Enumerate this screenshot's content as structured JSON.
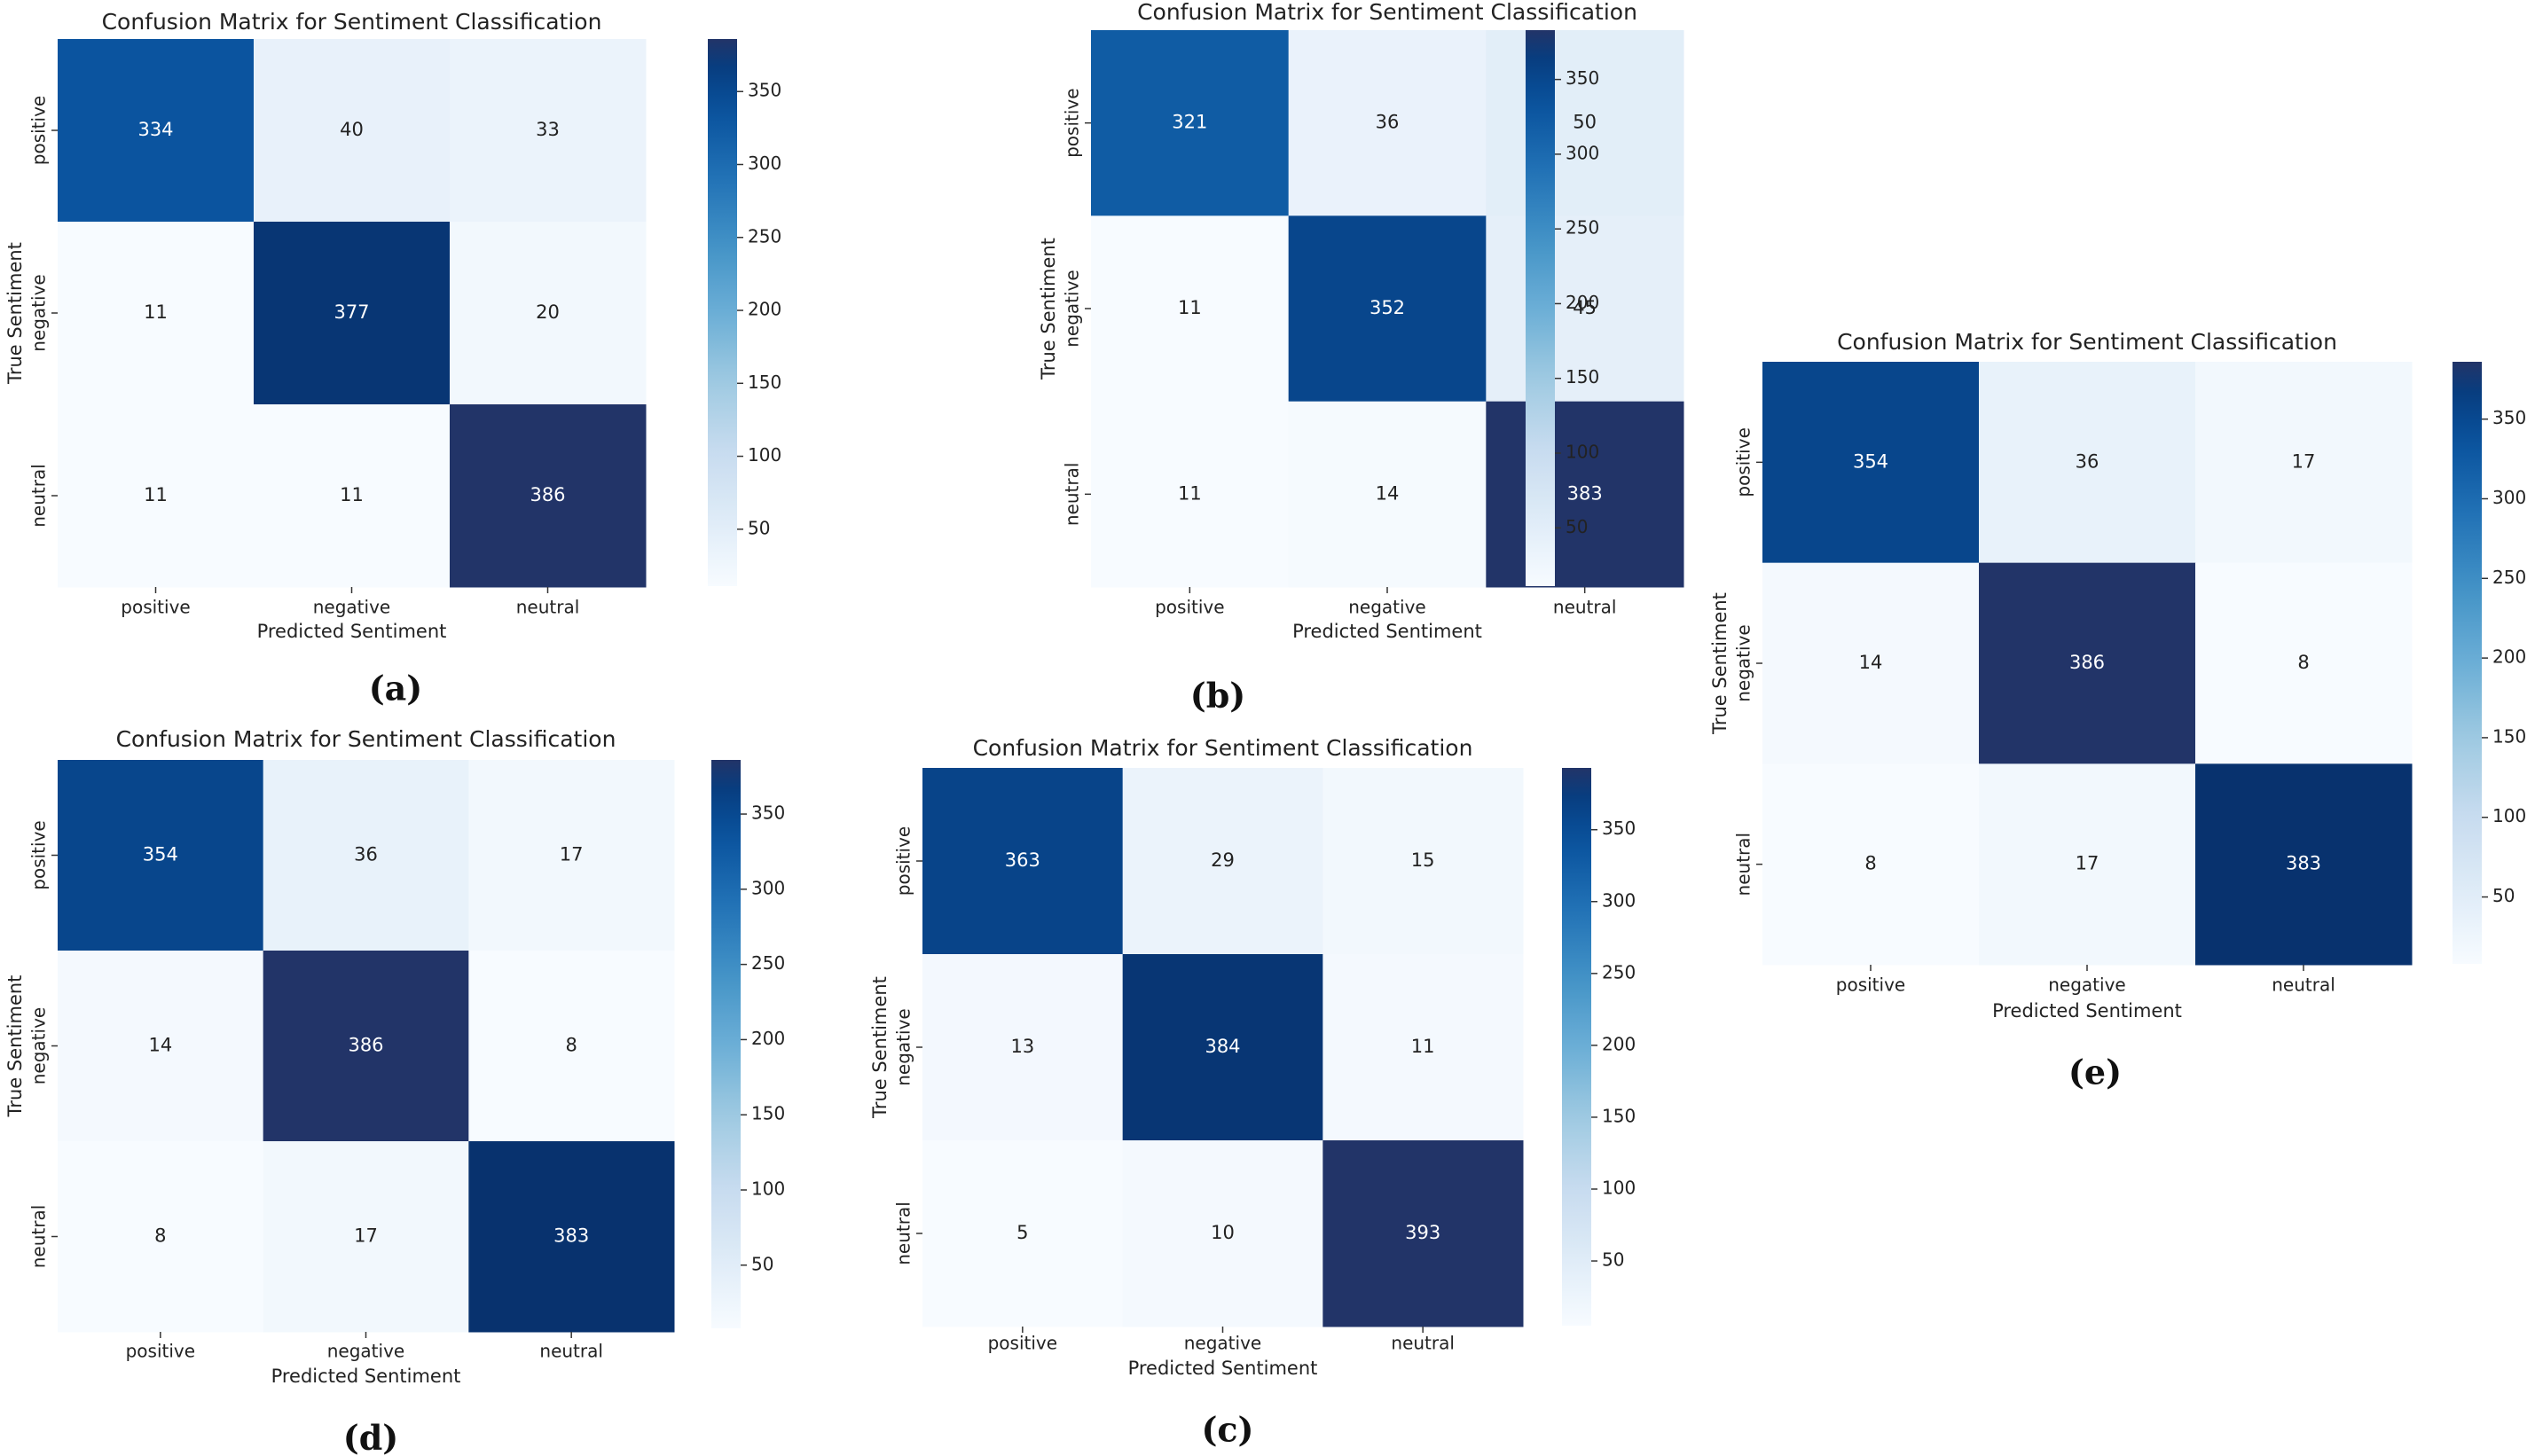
{
  "colors": {
    "cmap_stops": [
      "#f7fbff",
      "#deebf7",
      "#c6dbef",
      "#9ecae1",
      "#6baed6",
      "#4292c6",
      "#2171b5",
      "#08519c",
      "#08306b"
    ],
    "cmap_max_color": "#223468",
    "text_dark": "#222222",
    "text_light": "#ffffff"
  },
  "chart_data": [
    {
      "type": "heatmap",
      "panel": "a",
      "caption": "(a)",
      "title": "Confusion Matrix for Sentiment Classification",
      "xlabel": "Predicted Sentiment",
      "ylabel": "True Sentiment",
      "x_categories": [
        "positive",
        "negative",
        "neutral"
      ],
      "y_categories": [
        "positive",
        "negative",
        "neutral"
      ],
      "values": [
        [
          334,
          40,
          33
        ],
        [
          11,
          377,
          20
        ],
        [
          11,
          11,
          386
        ]
      ],
      "colorbar": {
        "min": 11,
        "max": 386,
        "ticks": [
          50,
          100,
          150,
          200,
          250,
          300,
          350
        ]
      }
    },
    {
      "type": "heatmap",
      "panel": "b",
      "caption": "(b)",
      "title": "Confusion Matrix for Sentiment Classification",
      "xlabel": "Predicted Sentiment",
      "ylabel": "True Sentiment",
      "x_categories": [
        "positive",
        "negative",
        "neutral"
      ],
      "y_categories": [
        "positive",
        "negative",
        "neutral"
      ],
      "values": [
        [
          321,
          36,
          50
        ],
        [
          11,
          352,
          45
        ],
        [
          11,
          14,
          383
        ]
      ],
      "colorbar": {
        "min": 11,
        "max": 383,
        "ticks": [
          50,
          100,
          150,
          200,
          250,
          300,
          350
        ]
      }
    },
    {
      "type": "heatmap",
      "panel": "e",
      "caption": "(e)",
      "title": "Confusion Matrix for Sentiment Classification",
      "xlabel": "Predicted Sentiment",
      "ylabel": "True Sentiment",
      "x_categories": [
        "positive",
        "negative",
        "neutral"
      ],
      "y_categories": [
        "positive",
        "negative",
        "neutral"
      ],
      "values": [
        [
          354,
          36,
          17
        ],
        [
          14,
          386,
          8
        ],
        [
          8,
          17,
          383
        ]
      ],
      "colorbar": {
        "min": 8,
        "max": 386,
        "ticks": [
          50,
          100,
          150,
          200,
          250,
          300,
          350
        ]
      }
    },
    {
      "type": "heatmap",
      "panel": "d",
      "caption": "(d)",
      "title": "Confusion Matrix for Sentiment Classification",
      "xlabel": "Predicted Sentiment",
      "ylabel": "True Sentiment",
      "x_categories": [
        "positive",
        "negative",
        "neutral"
      ],
      "y_categories": [
        "positive",
        "negative",
        "neutral"
      ],
      "values": [
        [
          354,
          36,
          17
        ],
        [
          14,
          386,
          8
        ],
        [
          8,
          17,
          383
        ]
      ],
      "colorbar": {
        "min": 8,
        "max": 386,
        "ticks": [
          50,
          100,
          150,
          200,
          250,
          300,
          350
        ]
      }
    },
    {
      "type": "heatmap",
      "panel": "c",
      "caption": "(c)",
      "title": "Confusion Matrix for Sentiment Classification",
      "xlabel": "Predicted Sentiment",
      "ylabel": "True Sentiment",
      "x_categories": [
        "positive",
        "negative",
        "neutral"
      ],
      "y_categories": [
        "positive",
        "negative",
        "neutral"
      ],
      "values": [
        [
          363,
          29,
          15
        ],
        [
          13,
          384,
          11
        ],
        [
          5,
          10,
          393
        ]
      ],
      "colorbar": {
        "min": 5,
        "max": 393,
        "ticks": [
          50,
          100,
          150,
          200,
          250,
          300,
          350
        ]
      }
    }
  ]
}
